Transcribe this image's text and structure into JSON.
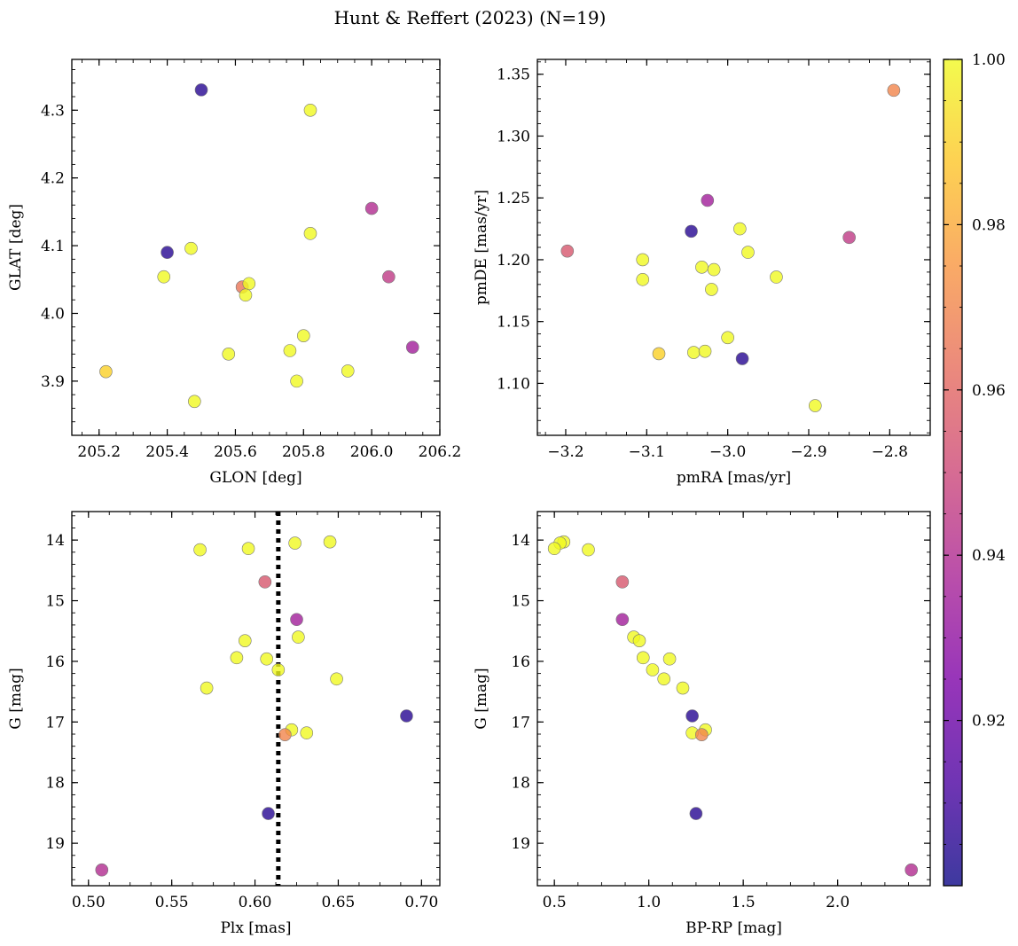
{
  "figure": {
    "title": "Hunt & Reffert (2023) (N=19)",
    "colorbar": {
      "min": 0.9,
      "max": 1.0,
      "ticks": [
        0.92,
        0.94,
        0.96,
        0.98,
        1.0
      ],
      "tick_labels": [
        "0.92",
        "0.94",
        "0.96",
        "0.98",
        "1.00"
      ],
      "colormap": "plasma"
    }
  },
  "chart_data": [
    {
      "id": "glon_glat",
      "type": "scatter",
      "xlabel": "GLON [deg]",
      "ylabel": "GLAT [deg]",
      "xlim": [
        205.12,
        206.2
      ],
      "ylim": [
        3.82,
        4.375
      ],
      "invert_y": false,
      "xticks": [
        205.2,
        205.4,
        205.6,
        205.8,
        206.0,
        206.2
      ],
      "xtick_labels": [
        "205.2",
        "205.4",
        "205.6",
        "205.8",
        "206.0",
        "206.2"
      ],
      "yticks": [
        3.9,
        4.0,
        4.1,
        4.2,
        4.3
      ],
      "ytick_labels": [
        "3.9",
        "4.0",
        "4.1",
        "4.2",
        "4.3"
      ],
      "points": [
        {
          "x": 205.5,
          "y": 4.33,
          "c": 0.905
        },
        {
          "x": 205.82,
          "y": 4.3,
          "c": 1.0
        },
        {
          "x": 206.0,
          "y": 4.155,
          "c": 0.94
        },
        {
          "x": 205.82,
          "y": 4.118,
          "c": 1.0
        },
        {
          "x": 205.4,
          "y": 4.09,
          "c": 0.905
        },
        {
          "x": 205.47,
          "y": 4.096,
          "c": 1.0
        },
        {
          "x": 205.39,
          "y": 4.054,
          "c": 1.0
        },
        {
          "x": 206.05,
          "y": 4.054,
          "c": 0.945
        },
        {
          "x": 205.62,
          "y": 4.039,
          "c": 0.965
        },
        {
          "x": 205.64,
          "y": 4.044,
          "c": 1.0
        },
        {
          "x": 205.63,
          "y": 4.027,
          "c": 1.0
        },
        {
          "x": 205.8,
          "y": 3.967,
          "c": 1.0
        },
        {
          "x": 206.12,
          "y": 3.95,
          "c": 0.935
        },
        {
          "x": 205.76,
          "y": 3.945,
          "c": 1.0
        },
        {
          "x": 205.58,
          "y": 3.94,
          "c": 1.0
        },
        {
          "x": 205.22,
          "y": 3.914,
          "c": 0.99
        },
        {
          "x": 205.93,
          "y": 3.915,
          "c": 1.0
        },
        {
          "x": 205.78,
          "y": 3.9,
          "c": 1.0
        },
        {
          "x": 205.48,
          "y": 3.87,
          "c": 1.0
        }
      ]
    },
    {
      "id": "pm",
      "type": "scatter",
      "xlabel": "pmRA [mas/yr]",
      "ylabel": "pmDE [mas/yr]",
      "xlim": [
        -3.235,
        -2.75
      ],
      "ylim": [
        1.058,
        1.362
      ],
      "invert_y": false,
      "xticks": [
        -3.2,
        -3.1,
        -3.0,
        -2.9,
        -2.8
      ],
      "xtick_labels": [
        "−3.2",
        "−3.1",
        "−3.0",
        "−2.9",
        "−2.8"
      ],
      "yticks": [
        1.1,
        1.15,
        1.2,
        1.25,
        1.3,
        1.35
      ],
      "ytick_labels": [
        "1.10",
        "1.15",
        "1.20",
        "1.25",
        "1.30",
        "1.35"
      ],
      "points": [
        {
          "x": -2.795,
          "y": 1.337,
          "c": 0.97
        },
        {
          "x": -3.025,
          "y": 1.248,
          "c": 0.935
        },
        {
          "x": -3.045,
          "y": 1.223,
          "c": 0.905
        },
        {
          "x": -2.985,
          "y": 1.225,
          "c": 1.0
        },
        {
          "x": -2.85,
          "y": 1.218,
          "c": 0.945
        },
        {
          "x": -3.198,
          "y": 1.207,
          "c": 0.955
        },
        {
          "x": -2.975,
          "y": 1.206,
          "c": 1.0
        },
        {
          "x": -3.105,
          "y": 1.2,
          "c": 1.0
        },
        {
          "x": -3.032,
          "y": 1.194,
          "c": 1.0
        },
        {
          "x": -3.017,
          "y": 1.192,
          "c": 1.0
        },
        {
          "x": -2.94,
          "y": 1.186,
          "c": 1.0
        },
        {
          "x": -3.105,
          "y": 1.184,
          "c": 1.0
        },
        {
          "x": -3.02,
          "y": 1.176,
          "c": 1.0
        },
        {
          "x": -3.0,
          "y": 1.137,
          "c": 1.0
        },
        {
          "x": -3.085,
          "y": 1.124,
          "c": 0.99
        },
        {
          "x": -3.042,
          "y": 1.125,
          "c": 1.0
        },
        {
          "x": -3.028,
          "y": 1.126,
          "c": 1.0
        },
        {
          "x": -2.982,
          "y": 1.12,
          "c": 0.905
        },
        {
          "x": -2.892,
          "y": 1.082,
          "c": 1.0
        }
      ]
    },
    {
      "id": "plx_g",
      "type": "scatter",
      "xlabel": "Plx [mas]",
      "ylabel": "G [mag]",
      "xlim": [
        0.49,
        0.711
      ],
      "ylim": [
        13.53,
        19.7
      ],
      "invert_y": true,
      "vline": 0.614,
      "xticks": [
        0.5,
        0.55,
        0.6,
        0.65,
        0.7
      ],
      "xtick_labels": [
        "0.50",
        "0.55",
        "0.60",
        "0.65",
        "0.70"
      ],
      "yticks": [
        14,
        15,
        16,
        17,
        18,
        19
      ],
      "ytick_labels": [
        "14",
        "15",
        "16",
        "17",
        "18",
        "19"
      ],
      "points": [
        {
          "x": 0.645,
          "y": 14.03,
          "c": 1.0
        },
        {
          "x": 0.624,
          "y": 14.05,
          "c": 1.0
        },
        {
          "x": 0.596,
          "y": 14.14,
          "c": 1.0
        },
        {
          "x": 0.567,
          "y": 14.16,
          "c": 1.0
        },
        {
          "x": 0.606,
          "y": 14.69,
          "c": 0.955
        },
        {
          "x": 0.625,
          "y": 15.31,
          "c": 0.935
        },
        {
          "x": 0.626,
          "y": 15.6,
          "c": 1.0
        },
        {
          "x": 0.594,
          "y": 15.66,
          "c": 1.0
        },
        {
          "x": 0.589,
          "y": 15.94,
          "c": 1.0
        },
        {
          "x": 0.607,
          "y": 15.96,
          "c": 1.0
        },
        {
          "x": 0.614,
          "y": 16.14,
          "c": 1.0
        },
        {
          "x": 0.649,
          "y": 16.29,
          "c": 1.0
        },
        {
          "x": 0.571,
          "y": 16.44,
          "c": 1.0
        },
        {
          "x": 0.691,
          "y": 16.9,
          "c": 0.905
        },
        {
          "x": 0.622,
          "y": 17.13,
          "c": 1.0
        },
        {
          "x": 0.631,
          "y": 17.18,
          "c": 1.0
        },
        {
          "x": 0.618,
          "y": 17.21,
          "c": 0.97
        },
        {
          "x": 0.608,
          "y": 18.51,
          "c": 0.905
        },
        {
          "x": 0.508,
          "y": 19.44,
          "c": 0.94
        }
      ]
    },
    {
      "id": "cmd",
      "type": "scatter",
      "xlabel": "BP-RP [mag]",
      "ylabel": "G [mag]",
      "xlim": [
        0.41,
        2.49
      ],
      "ylim": [
        13.53,
        19.7
      ],
      "invert_y": true,
      "xticks": [
        0.5,
        1.0,
        1.5,
        2.0
      ],
      "xtick_labels": [
        "0.5",
        "1.0",
        "1.5",
        "2.0"
      ],
      "yticks": [
        14,
        15,
        16,
        17,
        18,
        19
      ],
      "ytick_labels": [
        "14",
        "15",
        "16",
        "17",
        "18",
        "19"
      ],
      "points": [
        {
          "x": 0.55,
          "y": 14.03,
          "c": 1.0
        },
        {
          "x": 0.53,
          "y": 14.05,
          "c": 1.0
        },
        {
          "x": 0.5,
          "y": 14.14,
          "c": 1.0
        },
        {
          "x": 0.68,
          "y": 14.16,
          "c": 1.0
        },
        {
          "x": 0.86,
          "y": 14.69,
          "c": 0.955
        },
        {
          "x": 0.86,
          "y": 15.31,
          "c": 0.935
        },
        {
          "x": 0.92,
          "y": 15.6,
          "c": 1.0
        },
        {
          "x": 0.95,
          "y": 15.66,
          "c": 1.0
        },
        {
          "x": 0.97,
          "y": 15.94,
          "c": 1.0
        },
        {
          "x": 1.11,
          "y": 15.96,
          "c": 1.0
        },
        {
          "x": 1.02,
          "y": 16.14,
          "c": 1.0
        },
        {
          "x": 1.08,
          "y": 16.29,
          "c": 1.0
        },
        {
          "x": 1.18,
          "y": 16.44,
          "c": 1.0
        },
        {
          "x": 1.23,
          "y": 16.9,
          "c": 0.905
        },
        {
          "x": 1.3,
          "y": 17.13,
          "c": 1.0
        },
        {
          "x": 1.23,
          "y": 17.18,
          "c": 1.0
        },
        {
          "x": 1.28,
          "y": 17.21,
          "c": 0.97
        },
        {
          "x": 1.25,
          "y": 18.51,
          "c": 0.905
        },
        {
          "x": 2.39,
          "y": 19.44,
          "c": 0.94
        }
      ]
    }
  ]
}
